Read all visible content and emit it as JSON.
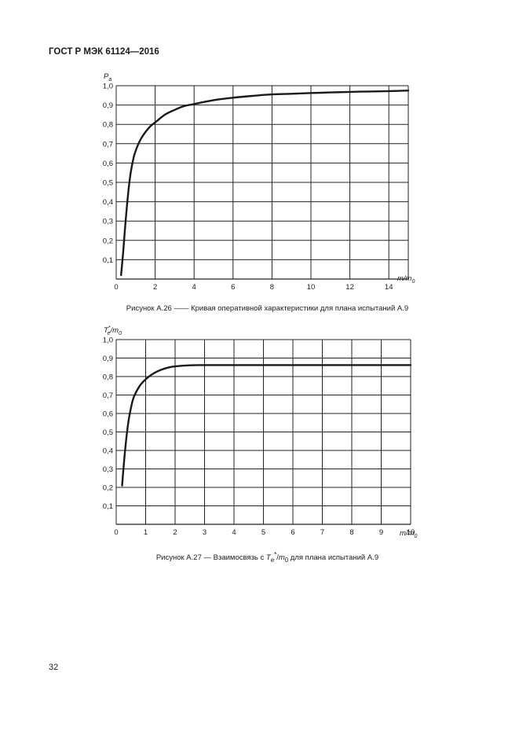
{
  "header": {
    "doc_id": "ГОСТ Р МЭК 61124—2016"
  },
  "footer": {
    "page_number": "32"
  },
  "captions": {
    "fig26": "Рисунок А.26 —— Кривая оперативной характеристики для плана испытаний А.9",
    "fig27_prefix": "Рисунок А.27 — Взаимосвязь с ",
    "fig27_var": "T",
    "fig27_sub": "e",
    "fig27_sup": "*",
    "fig27_mid": "/",
    "fig27_m": "m",
    "fig27_m_sub": "0",
    "fig27_suffix": " для плана испытаний А.9"
  },
  "chart_data": [
    {
      "type": "line",
      "ylabel": "P",
      "ylabel_sub": "a",
      "xlabel": "m/m",
      "xlabel_sub": "0",
      "xlim": [
        0,
        15
      ],
      "ylim": [
        0,
        1.0
      ],
      "grid": true,
      "x_ticks": [
        {
          "v": 0,
          "label": "0"
        },
        {
          "v": 2,
          "label": "2"
        },
        {
          "v": 4,
          "label": "4"
        },
        {
          "v": 6,
          "label": "6"
        },
        {
          "v": 8,
          "label": "8"
        },
        {
          "v": 10,
          "label": "10"
        },
        {
          "v": 12,
          "label": "12"
        },
        {
          "v": 14,
          "label": "14"
        }
      ],
      "x_gridlines": [
        0,
        2,
        4,
        6,
        8,
        10,
        12,
        14,
        15
      ],
      "y_ticks": [
        {
          "v": 0.1,
          "label": "0,1"
        },
        {
          "v": 0.2,
          "label": "0,2"
        },
        {
          "v": 0.3,
          "label": "0,3"
        },
        {
          "v": 0.4,
          "label": "0,4"
        },
        {
          "v": 0.5,
          "label": "0,5"
        },
        {
          "v": 0.6,
          "label": "0,6"
        },
        {
          "v": 0.7,
          "label": "0,7"
        },
        {
          "v": 0.8,
          "label": "0,8"
        },
        {
          "v": 0.9,
          "label": "0,9"
        },
        {
          "v": 1.0,
          "label": "1,0"
        }
      ],
      "series": [
        {
          "x": [
            0.25,
            0.35,
            0.5,
            0.7,
            0.9,
            1.1,
            1.3,
            1.5,
            1.75,
            2.0,
            2.5,
            3.0,
            3.5,
            4.0,
            5.0,
            6.0,
            7.0,
            8.0,
            9.0,
            10.0,
            11.0,
            12.0,
            13.0,
            14.0,
            15.0
          ],
          "y": [
            0.02,
            0.13,
            0.32,
            0.52,
            0.63,
            0.69,
            0.73,
            0.76,
            0.79,
            0.81,
            0.85,
            0.875,
            0.895,
            0.905,
            0.925,
            0.938,
            0.947,
            0.955,
            0.958,
            0.962,
            0.965,
            0.968,
            0.97,
            0.972,
            0.975
          ]
        }
      ]
    },
    {
      "type": "line",
      "ylabel": "T",
      "ylabel_sub": "e",
      "ylabel_sup": "*",
      "ylabel_rest": "/m",
      "ylabel_rest_sub": "0",
      "xlabel": "m/m",
      "xlabel_sub": "0",
      "xlim": [
        0,
        10
      ],
      "ylim": [
        0,
        1.0
      ],
      "grid": true,
      "x_ticks": [
        {
          "v": 0,
          "label": "0"
        },
        {
          "v": 1,
          "label": "1"
        },
        {
          "v": 2,
          "label": "2"
        },
        {
          "v": 3,
          "label": "3"
        },
        {
          "v": 4,
          "label": "4"
        },
        {
          "v": 5,
          "label": "5"
        },
        {
          "v": 6,
          "label": "6"
        },
        {
          "v": 7,
          "label": "7"
        },
        {
          "v": 8,
          "label": "8"
        },
        {
          "v": 9,
          "label": "9"
        },
        {
          "v": 10,
          "label": "10"
        }
      ],
      "x_gridlines": [
        0,
        1,
        2,
        3,
        4,
        5,
        6,
        7,
        8,
        9,
        10
      ],
      "y_ticks": [
        {
          "v": 0.1,
          "label": "0,1"
        },
        {
          "v": 0.2,
          "label": "0,2"
        },
        {
          "v": 0.3,
          "label": "0,3"
        },
        {
          "v": 0.4,
          "label": "0,4"
        },
        {
          "v": 0.5,
          "label": "0,5"
        },
        {
          "v": 0.6,
          "label": "0,6"
        },
        {
          "v": 0.7,
          "label": "0,7"
        },
        {
          "v": 0.8,
          "label": "0,8"
        },
        {
          "v": 0.9,
          "label": "0,9"
        },
        {
          "v": 1.0,
          "label": "1,0"
        }
      ],
      "series": [
        {
          "x": [
            0.2,
            0.3,
            0.4,
            0.5,
            0.6,
            0.8,
            1.0,
            1.2,
            1.5,
            1.8,
            2.0,
            2.5,
            3.0,
            4.0,
            5.0,
            6.0,
            7.0,
            8.0,
            9.0,
            10.0
          ],
          "y": [
            0.21,
            0.4,
            0.54,
            0.63,
            0.69,
            0.75,
            0.785,
            0.81,
            0.835,
            0.85,
            0.855,
            0.861,
            0.862,
            0.862,
            0.862,
            0.862,
            0.862,
            0.862,
            0.862,
            0.862
          ]
        }
      ]
    }
  ]
}
